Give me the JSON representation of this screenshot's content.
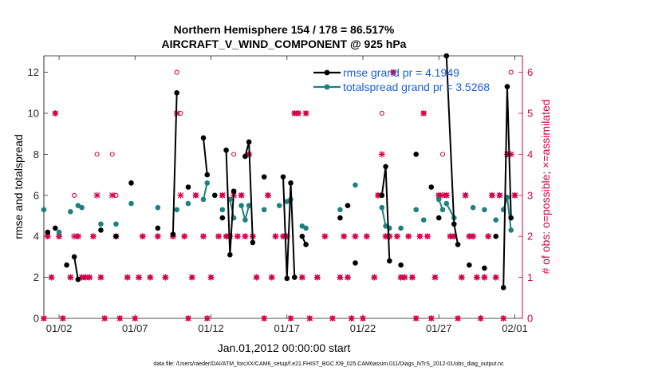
{
  "colors": {
    "rmse": "#000000",
    "totalspread": "#1f8080",
    "obs": "#d6004a",
    "legend_text": "#1a5fe0"
  },
  "chart_data": {
    "type": "line",
    "title": "Northern Hemisphere 154 / 178 = 86.517%",
    "subtitle": "AIRCRAFT_V_WIND_COMPONENT @ 925 hPa",
    "xlabel": "Jan.01,2012 00:00:00 start",
    "ylabel": "rmse and totalspread",
    "ylabel_right": "# of obs: o=possible; ×=assimilated",
    "xlim": [
      1,
      32.5
    ],
    "ylim": [
      0,
      12.8
    ],
    "ylim_right": [
      0,
      6.4
    ],
    "x_ticks": [
      2,
      7,
      12,
      17,
      22,
      27,
      32
    ],
    "x_tick_labels": [
      "01/02",
      "01/07",
      "01/12",
      "01/17",
      "01/22",
      "01/27",
      "02/01"
    ],
    "y_ticks": [
      0,
      2,
      4,
      6,
      8,
      10,
      12
    ],
    "y_tick_labels": [
      "0",
      "2",
      "4",
      "6",
      "8",
      "10",
      "12"
    ],
    "y_ticks_right": [
      0,
      1,
      2,
      3,
      4,
      5,
      6
    ],
    "y_tick_labels_right": [
      "0",
      "1",
      "2",
      "3",
      "4",
      "5",
      "6"
    ],
    "legend": [
      {
        "series": "rmse",
        "label": "rmse grand pr = 4.1949"
      },
      {
        "series": "totalspread",
        "label": "totalspread grand pr = 3.5268"
      }
    ],
    "legend_position": "top-right",
    "series": [
      {
        "name": "rmse",
        "segments": [
          [
            [
              1.25,
              4.2
            ]
          ],
          [
            [
              1.75,
              4.4
            ]
          ],
          [
            [
              2.5,
              2.6
            ]
          ],
          [
            [
              3.0,
              3.0
            ],
            [
              3.25,
              1.9
            ]
          ],
          [
            [
              4.75,
              4.3
            ]
          ],
          [
            [
              5.75,
              4.0
            ]
          ],
          [
            [
              6.75,
              6.6
            ]
          ],
          [
            [
              8.5,
              4.4
            ]
          ],
          [
            [
              9.5,
              4.1
            ],
            [
              9.75,
              11.0
            ]
          ],
          [
            [
              10.5,
              6.4
            ]
          ],
          [
            [
              11.5,
              8.8
            ],
            [
              11.75,
              7.0
            ]
          ],
          [
            [
              12.25,
              6.0
            ]
          ],
          [
            [
              12.75,
              4.9
            ]
          ],
          [
            [
              13.0,
              8.2
            ],
            [
              13.25,
              3.1
            ],
            [
              13.5,
              6.2
            ]
          ],
          [
            [
              14.25,
              7.9
            ],
            [
              14.5,
              8.6
            ],
            [
              14.75,
              3.7
            ]
          ],
          [
            [
              15.5,
              6.9
            ]
          ],
          [
            [
              16.75,
              6.9
            ],
            [
              17.0,
              1.95
            ],
            [
              17.25,
              6.6
            ],
            [
              17.5,
              2.0
            ]
          ],
          [
            [
              18.0,
              4.0
            ],
            [
              18.25,
              3.6
            ]
          ],
          [
            [
              20.5,
              4.9
            ]
          ],
          [
            [
              21.0,
              5.5
            ]
          ],
          [
            [
              21.5,
              2.7
            ]
          ],
          [
            [
              23.25,
              6.0
            ],
            [
              23.5,
              7.4
            ],
            [
              23.75,
              2.8
            ]
          ],
          [
            [
              24.5,
              2.6
            ]
          ],
          [
            [
              25.5,
              8.0
            ]
          ],
          [
            [
              26.5,
              6.4
            ]
          ],
          [
            [
              27.0,
              4.9
            ]
          ],
          [
            [
              27.5,
              12.8
            ],
            [
              28.0,
              4.6
            ],
            [
              28.25,
              3.6
            ]
          ],
          [
            [
              29.0,
              2.6
            ]
          ],
          [
            [
              30.0,
              2.45
            ]
          ],
          [
            [
              30.75,
              4.0
            ]
          ],
          [
            [
              31.25,
              1.5
            ],
            [
              31.5,
              11.3
            ],
            [
              31.75,
              4.9
            ]
          ]
        ]
      },
      {
        "name": "totalspread",
        "segments": [
          [
            [
              1.0,
              5.3
            ]
          ],
          [
            [
              2.0,
              4.2
            ]
          ],
          [
            [
              2.75,
              5.2
            ]
          ],
          [
            [
              3.25,
              5.5
            ]
          ],
          [
            [
              3.5,
              5.4
            ]
          ],
          [
            [
              4.75,
              4.6
            ]
          ],
          [
            [
              5.75,
              4.6
            ]
          ],
          [
            [
              6.75,
              5.6
            ]
          ],
          [
            [
              8.5,
              5.4
            ]
          ],
          [
            [
              9.75,
              5.3
            ]
          ],
          [
            [
              10.5,
              5.6
            ]
          ],
          [
            [
              11.5,
              5.8
            ],
            [
              11.75,
              6.6
            ]
          ],
          [
            [
              12.75,
              5.3
            ]
          ],
          [
            [
              13.25,
              5.8
            ],
            [
              13.5,
              4.9
            ]
          ],
          [
            [
              14.0,
              5.5
            ],
            [
              14.25,
              4.8
            ],
            [
              14.5,
              5.5
            ]
          ],
          [
            [
              15.5,
              5.3
            ]
          ],
          [
            [
              16.5,
              5.5
            ]
          ],
          [
            [
              17.0,
              5.7
            ],
            [
              17.25,
              5.8
            ]
          ],
          [
            [
              18.0,
              4.5
            ],
            [
              18.25,
              4.4
            ]
          ],
          [
            [
              20.5,
              5.3
            ]
          ],
          [
            [
              21.5,
              6.5
            ]
          ],
          [
            [
              23.25,
              5.4
            ],
            [
              23.5,
              4.5
            ],
            [
              23.75,
              4.4
            ]
          ],
          [
            [
              24.5,
              4.4
            ]
          ],
          [
            [
              25.5,
              5.3
            ]
          ],
          [
            [
              26.0,
              4.8
            ]
          ],
          [
            [
              27.0,
              5.8
            ],
            [
              27.25,
              5.3
            ]
          ],
          [
            [
              27.5,
              5.6
            ],
            [
              28.0,
              4.9
            ]
          ],
          [
            [
              29.25,
              5.4
            ]
          ],
          [
            [
              30.0,
              5.3
            ]
          ],
          [
            [
              30.75,
              4.8
            ]
          ],
          [
            [
              31.25,
              5.3
            ],
            [
              31.5,
              5.9
            ],
            [
              31.75,
              4.3
            ]
          ]
        ]
      }
    ],
    "obs_possible": [
      [
        1,
        0
      ],
      [
        1.25,
        2
      ],
      [
        1.5,
        1
      ],
      [
        1.75,
        5
      ],
      [
        2.0,
        2
      ],
      [
        2.25,
        0
      ],
      [
        2.75,
        1
      ],
      [
        3.0,
        3
      ],
      [
        3.25,
        2
      ],
      [
        3.5,
        1
      ],
      [
        3.75,
        1
      ],
      [
        4.0,
        1
      ],
      [
        4.25,
        2
      ],
      [
        4.5,
        4
      ],
      [
        4.75,
        1
      ],
      [
        5.0,
        0
      ],
      [
        5.5,
        4
      ],
      [
        5.75,
        3
      ],
      [
        6.0,
        0
      ],
      [
        6.5,
        1
      ],
      [
        7.0,
        0
      ],
      [
        7.25,
        1
      ],
      [
        7.5,
        2
      ],
      [
        8.0,
        1
      ],
      [
        8.5,
        2
      ],
      [
        9.0,
        1
      ],
      [
        9.5,
        2
      ],
      [
        9.75,
        6
      ],
      [
        10.0,
        5
      ],
      [
        10.25,
        2
      ],
      [
        10.5,
        0
      ],
      [
        10.75,
        1
      ],
      [
        11.0,
        3
      ],
      [
        11.5,
        2
      ],
      [
        11.75,
        0
      ],
      [
        12.0,
        1
      ],
      [
        12.5,
        2
      ],
      [
        12.75,
        3
      ],
      [
        13.0,
        2
      ],
      [
        13.25,
        2
      ],
      [
        13.5,
        4
      ],
      [
        13.75,
        2
      ],
      [
        14.0,
        3
      ],
      [
        14.25,
        2
      ],
      [
        14.5,
        4
      ],
      [
        14.75,
        2
      ],
      [
        15.0,
        1
      ],
      [
        15.5,
        0
      ],
      [
        15.75,
        3
      ],
      [
        16.0,
        1
      ],
      [
        16.25,
        2
      ],
      [
        16.75,
        2
      ],
      [
        17.0,
        2
      ],
      [
        17.25,
        0
      ],
      [
        17.5,
        5
      ],
      [
        17.75,
        5
      ],
      [
        18.0,
        1
      ],
      [
        18.25,
        5
      ],
      [
        18.5,
        0
      ],
      [
        19.0,
        1
      ],
      [
        19.5,
        2
      ],
      [
        20.0,
        0
      ],
      [
        20.5,
        1
      ],
      [
        20.75,
        2
      ],
      [
        21.0,
        1
      ],
      [
        21.25,
        0
      ],
      [
        21.5,
        2
      ],
      [
        22.0,
        0
      ],
      [
        22.25,
        2
      ],
      [
        22.75,
        1
      ],
      [
        23.0,
        3
      ],
      [
        23.25,
        5
      ],
      [
        23.5,
        2
      ],
      [
        23.75,
        2
      ],
      [
        24.0,
        6
      ],
      [
        24.25,
        2
      ],
      [
        24.5,
        1
      ],
      [
        24.75,
        1
      ],
      [
        25.0,
        2
      ],
      [
        25.25,
        1
      ],
      [
        25.5,
        0
      ],
      [
        25.75,
        2
      ],
      [
        26.0,
        5
      ],
      [
        26.25,
        2
      ],
      [
        26.5,
        0
      ],
      [
        26.75,
        1
      ],
      [
        27.0,
        3
      ],
      [
        27.25,
        4
      ],
      [
        27.5,
        3
      ],
      [
        27.75,
        2
      ],
      [
        28.0,
        2
      ],
      [
        28.25,
        0
      ],
      [
        28.5,
        1
      ],
      [
        28.75,
        3
      ],
      [
        29.0,
        2
      ],
      [
        29.25,
        2
      ],
      [
        29.5,
        1
      ],
      [
        29.75,
        0
      ],
      [
        30.0,
        1
      ],
      [
        30.25,
        2
      ],
      [
        30.5,
        3
      ],
      [
        30.75,
        1
      ],
      [
        31.0,
        3
      ],
      [
        31.25,
        0
      ],
      [
        31.5,
        4
      ],
      [
        31.75,
        6
      ],
      [
        32.0,
        3
      ]
    ],
    "obs_assimilated": [
      [
        1,
        0
      ],
      [
        1.25,
        2
      ],
      [
        1.5,
        1
      ],
      [
        1.75,
        5
      ],
      [
        2.0,
        2
      ],
      [
        2.25,
        0
      ],
      [
        2.75,
        1
      ],
      [
        3.0,
        2
      ],
      [
        3.25,
        2
      ],
      [
        3.5,
        1
      ],
      [
        3.75,
        1
      ],
      [
        4.0,
        1
      ],
      [
        4.25,
        2
      ],
      [
        4.5,
        3
      ],
      [
        4.75,
        1
      ],
      [
        5.0,
        0
      ],
      [
        5.5,
        3
      ],
      [
        5.75,
        2
      ],
      [
        6.0,
        0
      ],
      [
        6.5,
        1
      ],
      [
        7.0,
        0
      ],
      [
        7.25,
        1
      ],
      [
        7.5,
        2
      ],
      [
        8.0,
        1
      ],
      [
        8.5,
        2
      ],
      [
        9.0,
        1
      ],
      [
        9.5,
        2
      ],
      [
        9.75,
        5
      ],
      [
        10.0,
        3
      ],
      [
        10.25,
        2
      ],
      [
        10.5,
        0
      ],
      [
        10.75,
        1
      ],
      [
        11.0,
        3
      ],
      [
        11.5,
        2
      ],
      [
        11.75,
        0
      ],
      [
        12.0,
        1
      ],
      [
        12.5,
        2
      ],
      [
        12.75,
        3
      ],
      [
        13.0,
        2
      ],
      [
        13.25,
        2
      ],
      [
        13.5,
        3
      ],
      [
        13.75,
        2
      ],
      [
        14.0,
        3
      ],
      [
        14.25,
        2
      ],
      [
        14.5,
        4
      ],
      [
        14.75,
        2
      ],
      [
        15.0,
        1
      ],
      [
        15.5,
        0
      ],
      [
        15.75,
        3
      ],
      [
        16.0,
        1
      ],
      [
        16.25,
        2
      ],
      [
        16.75,
        2
      ],
      [
        17.0,
        2
      ],
      [
        17.25,
        0
      ],
      [
        17.5,
        5
      ],
      [
        17.75,
        5
      ],
      [
        18.0,
        1
      ],
      [
        18.25,
        5
      ],
      [
        18.5,
        0
      ],
      [
        19.0,
        1
      ],
      [
        19.5,
        2
      ],
      [
        20.0,
        0
      ],
      [
        20.5,
        1
      ],
      [
        20.75,
        2
      ],
      [
        21.0,
        1
      ],
      [
        21.25,
        0
      ],
      [
        21.5,
        2
      ],
      [
        22.0,
        0
      ],
      [
        22.25,
        2
      ],
      [
        22.75,
        1
      ],
      [
        23.0,
        3
      ],
      [
        23.25,
        4
      ],
      [
        23.5,
        2
      ],
      [
        23.75,
        2
      ],
      [
        24.0,
        6
      ],
      [
        24.25,
        2
      ],
      [
        24.5,
        1
      ],
      [
        24.75,
        1
      ],
      [
        25.0,
        2
      ],
      [
        25.25,
        1
      ],
      [
        25.5,
        0
      ],
      [
        25.75,
        2
      ],
      [
        26.0,
        5
      ],
      [
        26.25,
        2
      ],
      [
        26.5,
        0
      ],
      [
        26.75,
        1
      ],
      [
        27.0,
        3
      ],
      [
        27.25,
        3
      ],
      [
        27.5,
        3
      ],
      [
        27.75,
        2
      ],
      [
        28.0,
        2
      ],
      [
        28.25,
        0
      ],
      [
        28.5,
        1
      ],
      [
        28.75,
        3
      ],
      [
        29.0,
        2
      ],
      [
        29.25,
        2
      ],
      [
        29.5,
        1
      ],
      [
        29.75,
        0
      ],
      [
        30.0,
        1
      ],
      [
        30.25,
        2
      ],
      [
        30.5,
        3
      ],
      [
        30.75,
        1
      ],
      [
        31.0,
        3
      ],
      [
        31.25,
        0
      ],
      [
        31.5,
        4
      ],
      [
        31.75,
        4
      ],
      [
        32.0,
        3
      ]
    ]
  },
  "footer": {
    "data_file": "data file: /Users/raeder/DAI/ATM_forcXX/CAM6_setup/f.e21.FHIST_BGC.f09_025.CAM6assim.011/Diags_NTrS_2012-01/obs_diag_output.nc"
  }
}
